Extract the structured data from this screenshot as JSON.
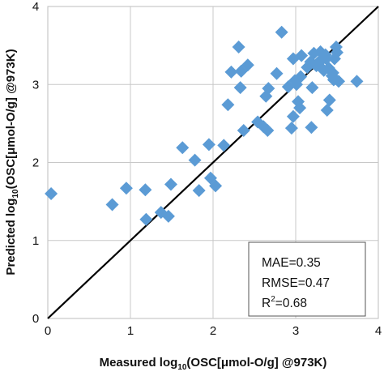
{
  "chart_data": {
    "type": "scatter",
    "xlabel": {
      "pre": "Measured log",
      "sub": "10",
      "post": "(OSC[μmol-O/g] @973K)"
    },
    "ylabel": {
      "pre": "Predicted log",
      "sub": "10",
      "post": "(OSC[μmol-O/g] @973K)"
    },
    "xlim": [
      0,
      4
    ],
    "ylim": [
      0,
      4
    ],
    "xticks": [
      "0",
      "1",
      "2",
      "3",
      "4"
    ],
    "yticks": [
      "0",
      "1",
      "2",
      "3",
      "4"
    ],
    "grid": true,
    "marker": "diamond",
    "marker_color": "#5b9bd5",
    "reference_line": {
      "from": [
        0,
        0
      ],
      "to": [
        4,
        4
      ],
      "color": "#000000"
    },
    "stats": {
      "mae": "MAE=0.35",
      "rmse": "RMSE=0.47",
      "r2_pre": "R",
      "r2_sup": "2",
      "r2_post": "=0.68"
    },
    "points": [
      [
        0.04,
        1.6
      ],
      [
        0.78,
        1.46
      ],
      [
        0.95,
        1.67
      ],
      [
        1.18,
        1.65
      ],
      [
        1.19,
        1.27
      ],
      [
        1.37,
        1.36
      ],
      [
        1.46,
        1.31
      ],
      [
        1.49,
        1.72
      ],
      [
        1.63,
        2.19
      ],
      [
        1.78,
        2.03
      ],
      [
        1.83,
        1.64
      ],
      [
        1.95,
        2.23
      ],
      [
        1.97,
        1.8
      ],
      [
        2.03,
        1.7
      ],
      [
        2.13,
        2.22
      ],
      [
        2.18,
        2.74
      ],
      [
        2.22,
        3.16
      ],
      [
        2.31,
        3.48
      ],
      [
        2.33,
        2.96
      ],
      [
        2.34,
        3.17
      ],
      [
        2.37,
        2.41
      ],
      [
        2.42,
        3.25
      ],
      [
        2.54,
        2.52
      ],
      [
        2.61,
        2.46
      ],
      [
        2.64,
        2.85
      ],
      [
        2.66,
        2.41
      ],
      [
        2.67,
        2.95
      ],
      [
        2.77,
        3.14
      ],
      [
        2.83,
        3.67
      ],
      [
        2.91,
        2.97
      ],
      [
        2.95,
        2.44
      ],
      [
        2.97,
        3.33
      ],
      [
        2.97,
        2.59
      ],
      [
        2.99,
        3.05
      ],
      [
        3.01,
        3.0
      ],
      [
        3.03,
        2.78
      ],
      [
        3.05,
        2.7
      ],
      [
        3.06,
        3.1
      ],
      [
        3.07,
        3.37
      ],
      [
        3.14,
        3.22
      ],
      [
        3.18,
        3.29
      ],
      [
        3.19,
        2.45
      ],
      [
        3.2,
        2.96
      ],
      [
        3.22,
        3.4
      ],
      [
        3.25,
        3.24
      ],
      [
        3.28,
        3.29
      ],
      [
        3.3,
        3.42
      ],
      [
        3.32,
        3.32
      ],
      [
        3.34,
        3.18
      ],
      [
        3.36,
        3.38
      ],
      [
        3.37,
        3.33
      ],
      [
        3.38,
        2.67
      ],
      [
        3.4,
        3.21
      ],
      [
        3.41,
        2.8
      ],
      [
        3.44,
        3.11
      ],
      [
        3.45,
        3.15
      ],
      [
        3.46,
        3.06
      ],
      [
        3.47,
        3.33
      ],
      [
        3.49,
        3.48
      ],
      [
        3.5,
        3.41
      ],
      [
        3.52,
        3.04
      ],
      [
        3.74,
        3.04
      ]
    ]
  }
}
